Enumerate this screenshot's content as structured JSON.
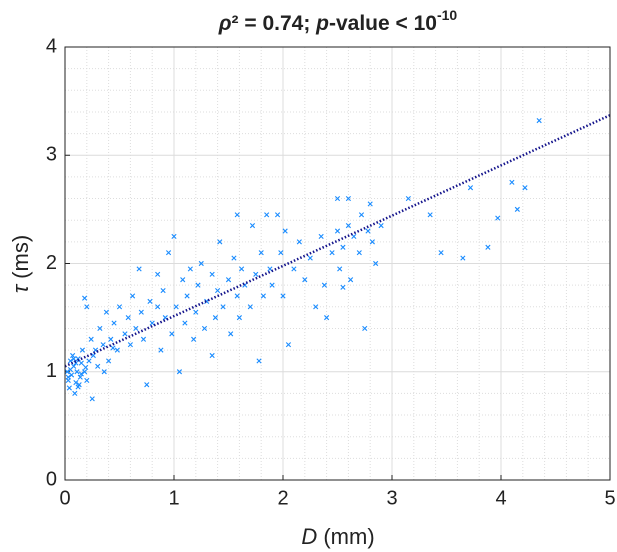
{
  "chart_data": {
    "type": "scatter",
    "title": [
      "ρ",
      "² = 0.74; ",
      "p",
      "-value < 10",
      "-10"
    ],
    "xlabel": [
      "D",
      " (mm)"
    ],
    "ylabel": [
      "τ",
      " (ms)"
    ],
    "xlim": [
      0,
      5
    ],
    "ylim": [
      0,
      4
    ],
    "xticks": [
      0,
      1,
      2,
      3,
      4,
      5
    ],
    "yticks": [
      0,
      1,
      2,
      3,
      4
    ],
    "grid": true,
    "minor_grid": 5,
    "series": [
      {
        "type": "scatter",
        "color": "#1a8cff",
        "x": [
          0.02,
          0.03,
          0.05,
          0.04,
          0.06,
          0.08,
          0.1,
          0.12,
          0.07,
          0.09,
          0.11,
          0.14,
          0.15,
          0.13,
          0.16,
          0.18,
          0.2,
          0.22,
          0.25,
          0.24,
          0.2,
          0.18,
          0.28,
          0.3,
          0.32,
          0.35,
          0.38,
          0.4,
          0.42,
          0.45,
          0.5,
          0.48,
          0.55,
          0.58,
          0.6,
          0.62,
          0.65,
          0.7,
          0.72,
          0.75,
          0.78,
          0.8,
          0.85,
          0.88,
          0.9,
          0.92,
          0.95,
          0.98,
          1.0,
          1.02,
          1.05,
          1.08,
          1.1,
          1.12,
          1.15,
          1.18,
          1.2,
          1.22,
          1.25,
          1.28,
          1.3,
          1.35,
          1.38,
          1.4,
          1.42,
          1.45,
          1.5,
          1.52,
          1.55,
          1.58,
          1.6,
          1.62,
          1.65,
          1.7,
          1.72,
          1.75,
          1.78,
          1.8,
          1.82,
          1.85,
          1.88,
          1.9,
          1.95,
          1.98,
          2.0,
          2.02,
          2.05,
          2.1,
          2.15,
          2.2,
          2.25,
          2.3,
          2.35,
          2.38,
          2.4,
          2.45,
          2.5,
          2.52,
          2.55,
          2.6,
          2.62,
          2.65,
          2.7,
          2.72,
          2.75,
          2.78,
          2.8,
          2.82,
          2.85,
          2.9,
          3.15,
          3.35,
          3.45,
          3.65,
          3.72,
          3.88,
          3.97,
          4.1,
          4.15,
          4.22,
          4.35,
          2.5,
          2.6,
          2.55,
          1.35,
          0.85,
          0.68,
          1.58,
          0.05,
          0.1,
          0.15,
          0.03,
          0.08,
          0.12,
          0.19,
          0.26,
          0.36,
          0.44
        ],
        "y": [
          1.0,
          0.92,
          1.1,
          0.85,
          0.97,
          1.05,
          0.9,
          1.12,
          1.15,
          0.8,
          1.0,
          0.95,
          1.08,
          0.88,
          1.2,
          1.0,
          0.92,
          1.1,
          0.75,
          1.3,
          1.6,
          1.68,
          1.2,
          1.05,
          1.4,
          1.25,
          1.55,
          1.1,
          1.3,
          1.45,
          1.6,
          1.2,
          1.35,
          1.5,
          1.25,
          1.7,
          1.4,
          1.55,
          1.3,
          0.88,
          1.65,
          1.45,
          1.9,
          1.2,
          1.75,
          1.5,
          2.1,
          1.35,
          2.25,
          1.6,
          1.0,
          1.85,
          1.45,
          1.7,
          1.95,
          1.3,
          1.55,
          1.8,
          2.0,
          1.4,
          1.65,
          1.9,
          1.5,
          1.75,
          2.2,
          1.6,
          1.85,
          1.35,
          2.05,
          1.7,
          1.5,
          1.95,
          1.8,
          1.6,
          2.35,
          1.9,
          1.1,
          2.1,
          1.7,
          2.45,
          1.95,
          1.8,
          2.45,
          2.1,
          1.7,
          2.3,
          1.25,
          1.95,
          2.2,
          1.85,
          2.05,
          1.6,
          2.25,
          1.8,
          1.5,
          2.1,
          2.3,
          1.95,
          2.15,
          2.35,
          1.85,
          2.25,
          2.1,
          2.45,
          1.4,
          2.3,
          2.55,
          2.2,
          2.0,
          2.35,
          2.6,
          2.45,
          2.1,
          2.05,
          2.7,
          2.15,
          2.42,
          2.75,
          2.5,
          2.7,
          3.32,
          2.6,
          2.6,
          1.78,
          1.15,
          1.6,
          1.95,
          2.45,
          1.02,
          1.08,
          0.98,
          0.95,
          1.12,
          0.86,
          1.04,
          1.15,
          1.0,
          1.22
        ]
      },
      {
        "type": "line",
        "style": "dotted",
        "color": "#14148c",
        "x": [
          0,
          5
        ],
        "y": [
          1.05,
          3.37
        ]
      }
    ]
  }
}
